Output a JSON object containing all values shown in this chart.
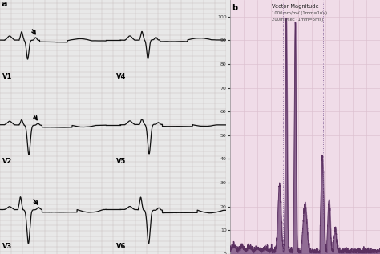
{
  "bg_color_left": "#e8e8e8",
  "bg_color_right": "#f0dce8",
  "grid_color_left": "#c8c0c0",
  "grid_color_right": "#dcc0d0",
  "label_a": "a",
  "label_b": "b",
  "leads_left": [
    "V1",
    "V2",
    "V3"
  ],
  "leads_right": [
    "V4",
    "V5",
    "V6"
  ],
  "title_right": "Vector Magnitude",
  "subtitle_right1": "1000mm/mV (1mm=1uV)",
  "subtitle_right2": "200ms/sec (1mm=5ms)",
  "yticks_right": [
    0,
    10,
    20,
    30,
    40,
    50,
    60,
    70,
    80,
    90,
    100
  ],
  "ekg_color": "#111111",
  "vector_fill_color": "#7a5080",
  "vector_line_color": "#5a3060"
}
